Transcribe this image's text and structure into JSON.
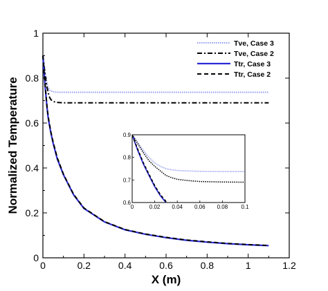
{
  "chart_data": {
    "type": "line",
    "xlabel": "X (m)",
    "ylabel": "Normalized Temperature",
    "xlim": [
      0,
      1.2
    ],
    "ylim": [
      0,
      1
    ],
    "xticks": [
      "0",
      "0.2",
      "0.4",
      "0.6",
      "0.8",
      "1",
      "1.2"
    ],
    "yticks": [
      "0",
      "0.2",
      "0.4",
      "0.6",
      "0.8",
      "1"
    ],
    "grid": false,
    "legend_position": "top-right",
    "series": [
      {
        "name": "Tve, Case 3",
        "color": "#8f98ee",
        "style": "dotted",
        "x": [
          0,
          0.005,
          0.01,
          0.015,
          0.02,
          0.025,
          0.03,
          0.035,
          0.04,
          0.05,
          0.06,
          0.08,
          0.1,
          0.2,
          0.4,
          0.6,
          0.8,
          1.0,
          1.1
        ],
        "y": [
          0.9,
          0.865,
          0.83,
          0.8,
          0.775,
          0.76,
          0.75,
          0.745,
          0.742,
          0.74,
          0.738,
          0.737,
          0.737,
          0.737,
          0.737,
          0.737,
          0.737,
          0.737,
          0.737
        ]
      },
      {
        "name": "Tve, Case 2",
        "color": "#000000",
        "style": "dashdot",
        "x": [
          0,
          0.005,
          0.01,
          0.015,
          0.02,
          0.025,
          0.03,
          0.035,
          0.04,
          0.05,
          0.06,
          0.08,
          0.1,
          0.2,
          0.4,
          0.6,
          0.8,
          1.0,
          1.1
        ],
        "y": [
          0.9,
          0.86,
          0.82,
          0.785,
          0.76,
          0.74,
          0.72,
          0.71,
          0.703,
          0.697,
          0.693,
          0.691,
          0.69,
          0.69,
          0.69,
          0.69,
          0.69,
          0.69,
          0.69
        ]
      },
      {
        "name": "Ttr,  Case 3",
        "color": "#2b2bd6",
        "style": "solid",
        "x": [
          0,
          0.005,
          0.01,
          0.015,
          0.02,
          0.025,
          0.03,
          0.04,
          0.05,
          0.07,
          0.1,
          0.15,
          0.2,
          0.3,
          0.4,
          0.5,
          0.6,
          0.7,
          0.8,
          0.9,
          1.0,
          1.1
        ],
        "y": [
          0.9,
          0.83,
          0.77,
          0.72,
          0.67,
          0.63,
          0.6,
          0.55,
          0.51,
          0.44,
          0.37,
          0.28,
          0.22,
          0.16,
          0.125,
          0.105,
          0.09,
          0.078,
          0.07,
          0.063,
          0.058,
          0.054
        ]
      },
      {
        "name": "Ttr,  Case 2",
        "color": "#000000",
        "style": "dashed",
        "x": [
          0,
          0.005,
          0.01,
          0.015,
          0.02,
          0.025,
          0.03,
          0.04,
          0.05,
          0.07,
          0.1,
          0.15,
          0.2,
          0.3,
          0.4,
          0.5,
          0.6,
          0.7,
          0.8,
          0.9,
          1.0,
          1.1
        ],
        "y": [
          0.9,
          0.835,
          0.775,
          0.725,
          0.675,
          0.635,
          0.605,
          0.555,
          0.515,
          0.445,
          0.372,
          0.282,
          0.222,
          0.161,
          0.126,
          0.106,
          0.091,
          0.079,
          0.071,
          0.064,
          0.059,
          0.055
        ]
      }
    ],
    "inset": {
      "xlim": [
        0,
        0.1
      ],
      "ylim": [
        0.6,
        0.9
      ],
      "xticks": [
        "0",
        "0.02",
        "0.04",
        "0.06",
        "0.08",
        "0.1"
      ],
      "yticks": [
        "0.6",
        "0.7",
        "0.8",
        "0.9"
      ]
    }
  }
}
